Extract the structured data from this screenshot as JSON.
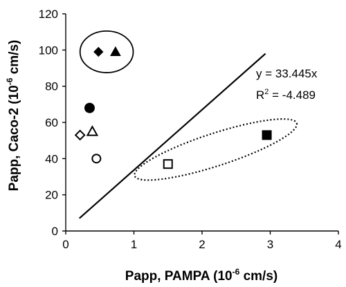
{
  "chart_data": {
    "type": "scatter",
    "xlabel": {
      "prefix": "Papp, PAMPA (10",
      "sup": "-6",
      "suffix": " cm/s)"
    },
    "ylabel": {
      "prefix": "Papp, Caco-2 (10",
      "sup": "-6",
      "suffix": " cm/s)"
    },
    "xlim": [
      0,
      4
    ],
    "ylim": [
      0,
      120
    ],
    "x_ticks": [
      0,
      1,
      2,
      3,
      4
    ],
    "y_ticks": [
      0,
      20,
      40,
      60,
      80,
      100,
      120
    ],
    "grid": false,
    "points": [
      {
        "x": 0.48,
        "y": 99,
        "marker": "diamond",
        "filled": true
      },
      {
        "x": 0.73,
        "y": 99,
        "marker": "triangle",
        "filled": true
      },
      {
        "x": 0.35,
        "y": 68,
        "marker": "circle",
        "filled": true
      },
      {
        "x": 0.21,
        "y": 53,
        "marker": "diamond",
        "filled": false
      },
      {
        "x": 0.39,
        "y": 55,
        "marker": "triangle",
        "filled": false
      },
      {
        "x": 0.45,
        "y": 40,
        "marker": "circle",
        "filled": false
      },
      {
        "x": 1.5,
        "y": 37,
        "marker": "square",
        "filled": false
      },
      {
        "x": 2.95,
        "y": 53,
        "marker": "square",
        "filled": true
      }
    ],
    "trendline": {
      "x": [
        0.2,
        2.93
      ],
      "y": [
        7,
        98
      ]
    },
    "equation": "y = 33.445x",
    "r_squared": {
      "prefix": "R",
      "sup": "2",
      "suffix": " = -4.489"
    },
    "highlights": [
      {
        "style": "solid",
        "center": [
          0.6,
          99
        ],
        "rx": 0.39,
        "ry": 11.5
      },
      {
        "style": "dotted",
        "center": [
          2.2,
          45
        ],
        "rx": 1.25,
        "ry": 9,
        "rotate_deg": -18
      }
    ]
  }
}
